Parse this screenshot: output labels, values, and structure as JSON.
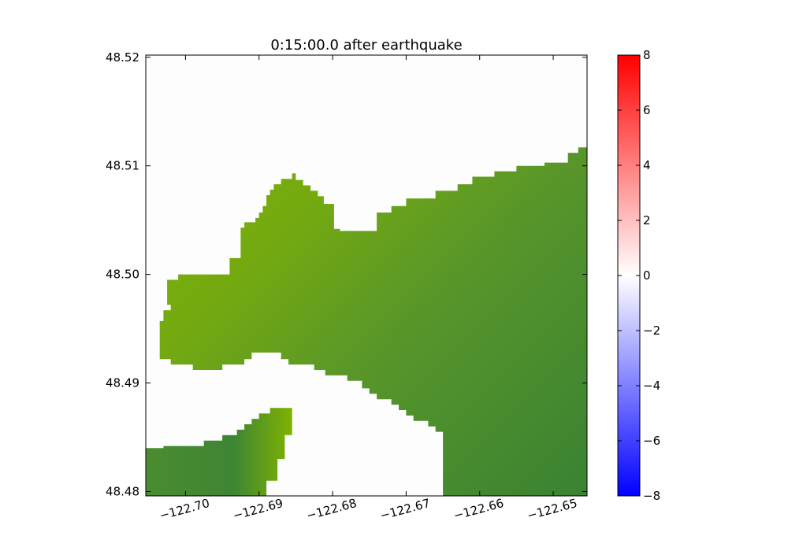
{
  "chart_data": {
    "type": "heatmap",
    "title": "0:15:00.0 after earthquake",
    "xlabel": "",
    "ylabel": "",
    "xlim": [
      -122.7054,
      -122.6454
    ],
    "ylim": [
      48.4796,
      48.5202
    ],
    "x_ticks": [
      {
        "value": -122.7,
        "label": "−122.70"
      },
      {
        "value": -122.69,
        "label": "−122.69"
      },
      {
        "value": -122.68,
        "label": "−122.68"
      },
      {
        "value": -122.67,
        "label": "−122.67"
      },
      {
        "value": -122.66,
        "label": "−122.66"
      },
      {
        "value": -122.65,
        "label": "−122.65"
      }
    ],
    "y_ticks": [
      {
        "value": 48.48,
        "label": "48.48"
      },
      {
        "value": 48.49,
        "label": "48.49"
      },
      {
        "value": 48.5,
        "label": "48.50"
      },
      {
        "value": 48.51,
        "label": "48.51"
      },
      {
        "value": 48.52,
        "label": "48.52"
      }
    ],
    "land_regions": [
      {
        "name": "main-land",
        "shade": "mix",
        "polygon": [
          [
            -122.7054,
            48.5202
          ],
          [
            -122.6454,
            48.5202
          ],
          [
            -122.6454,
            48.5117
          ],
          [
            -122.6466,
            48.5117
          ],
          [
            -122.6466,
            48.5112
          ],
          [
            -122.648,
            48.5112
          ],
          [
            -122.648,
            48.5103
          ],
          [
            -122.6512,
            48.5103
          ],
          [
            -122.6512,
            48.51
          ],
          [
            -122.655,
            48.51
          ],
          [
            -122.655,
            48.5095
          ],
          [
            -122.658,
            48.5095
          ],
          [
            -122.658,
            48.509
          ],
          [
            -122.661,
            48.509
          ],
          [
            -122.661,
            48.5083
          ],
          [
            -122.663,
            48.5083
          ],
          [
            -122.663,
            48.5077
          ],
          [
            -122.666,
            48.5077
          ],
          [
            -122.666,
            48.507
          ],
          [
            -122.67,
            48.507
          ],
          [
            -122.67,
            48.5063
          ],
          [
            -122.672,
            48.5063
          ],
          [
            -122.672,
            48.5057
          ],
          [
            -122.674,
            48.5057
          ],
          [
            -122.674,
            48.504
          ],
          [
            -122.679,
            48.504
          ],
          [
            -122.679,
            48.5042
          ],
          [
            -122.6798,
            48.5042
          ],
          [
            -122.6798,
            48.5065
          ],
          [
            -122.6812,
            48.5065
          ],
          [
            -122.6812,
            48.5072
          ],
          [
            -122.682,
            48.5072
          ],
          [
            -122.682,
            48.5077
          ],
          [
            -122.683,
            48.5077
          ],
          [
            -122.683,
            48.5082
          ],
          [
            -122.684,
            48.5082
          ],
          [
            -122.684,
            48.5087
          ],
          [
            -122.685,
            48.5087
          ],
          [
            -122.685,
            48.5093
          ],
          [
            -122.6855,
            48.5093
          ],
          [
            -122.6855,
            48.5088
          ],
          [
            -122.687,
            48.5088
          ],
          [
            -122.687,
            48.5083
          ],
          [
            -122.688,
            48.5083
          ],
          [
            -122.688,
            48.5078
          ],
          [
            -122.6885,
            48.5078
          ],
          [
            -122.6885,
            48.5073
          ],
          [
            -122.689,
            48.5073
          ],
          [
            -122.689,
            48.5063
          ],
          [
            -122.6895,
            48.5063
          ],
          [
            -122.6895,
            48.5057
          ],
          [
            -122.69,
            48.5057
          ],
          [
            -122.69,
            48.5052
          ],
          [
            -122.6905,
            48.5052
          ],
          [
            -122.6905,
            48.5048
          ],
          [
            -122.692,
            48.5048
          ],
          [
            -122.692,
            48.5043
          ],
          [
            -122.6925,
            48.5043
          ],
          [
            -122.6925,
            48.5015
          ],
          [
            -122.694,
            48.5015
          ],
          [
            -122.694,
            48.5
          ],
          [
            -122.701,
            48.5
          ],
          [
            -122.701,
            48.4995
          ],
          [
            -122.7025,
            48.4995
          ],
          [
            -122.7025,
            48.4972
          ],
          [
            -122.702,
            48.4972
          ],
          [
            -122.702,
            48.4967
          ],
          [
            -122.703,
            48.4967
          ],
          [
            -122.703,
            48.4957
          ],
          [
            -122.7035,
            48.4957
          ],
          [
            -122.7035,
            48.4937
          ],
          [
            -122.7035,
            48.4922
          ],
          [
            -122.702,
            48.4922
          ],
          [
            -122.702,
            48.4917
          ],
          [
            -122.699,
            48.4917
          ],
          [
            -122.699,
            48.4912
          ],
          [
            -122.695,
            48.4912
          ],
          [
            -122.695,
            48.4917
          ],
          [
            -122.692,
            48.4917
          ],
          [
            -122.692,
            48.4922
          ],
          [
            -122.691,
            48.4922
          ],
          [
            -122.691,
            48.4928
          ],
          [
            -122.687,
            48.4928
          ],
          [
            -122.687,
            48.4922
          ],
          [
            -122.686,
            48.4922
          ],
          [
            -122.686,
            48.4917
          ],
          [
            -122.6825,
            48.4917
          ],
          [
            -122.6825,
            48.4912
          ],
          [
            -122.681,
            48.4912
          ],
          [
            -122.681,
            48.4907
          ],
          [
            -122.678,
            48.4907
          ],
          [
            -122.678,
            48.4902
          ],
          [
            -122.676,
            48.4902
          ],
          [
            -122.676,
            48.4895
          ],
          [
            -122.675,
            48.4895
          ],
          [
            -122.675,
            48.489
          ],
          [
            -122.674,
            48.489
          ],
          [
            -122.674,
            48.4885
          ],
          [
            -122.672,
            48.4885
          ],
          [
            -122.672,
            48.488
          ],
          [
            -122.671,
            48.488
          ],
          [
            -122.671,
            48.4875
          ],
          [
            -122.67,
            48.4875
          ],
          [
            -122.67,
            48.487
          ],
          [
            -122.669,
            48.487
          ],
          [
            -122.669,
            48.4865
          ],
          [
            -122.667,
            48.4865
          ],
          [
            -122.667,
            48.486
          ],
          [
            -122.666,
            48.486
          ],
          [
            -122.666,
            48.4855
          ],
          [
            -122.665,
            48.4855
          ],
          [
            -122.665,
            48.4796
          ],
          [
            -122.6454,
            48.4796
          ],
          [
            -122.6454,
            48.5202
          ]
        ]
      },
      {
        "name": "southwest-land",
        "shade": "mix",
        "polygon": [
          [
            -122.7054,
            48.484
          ],
          [
            -122.7054,
            48.4796
          ],
          [
            -122.689,
            48.4796
          ],
          [
            -122.689,
            48.481
          ],
          [
            -122.6875,
            48.481
          ],
          [
            -122.6875,
            48.483
          ],
          [
            -122.6865,
            48.483
          ],
          [
            -122.6865,
            48.4852
          ],
          [
            -122.6855,
            48.4852
          ],
          [
            -122.6855,
            48.4877
          ],
          [
            -122.6885,
            48.4877
          ],
          [
            -122.6885,
            48.4872
          ],
          [
            -122.69,
            48.4872
          ],
          [
            -122.69,
            48.4867
          ],
          [
            -122.691,
            48.4867
          ],
          [
            -122.691,
            48.4862
          ],
          [
            -122.692,
            48.4862
          ],
          [
            -122.692,
            48.4857
          ],
          [
            -122.693,
            48.4857
          ],
          [
            -122.693,
            48.4852
          ],
          [
            -122.695,
            48.4852
          ],
          [
            -122.695,
            48.4847
          ],
          [
            -122.6975,
            48.4847
          ],
          [
            -122.6975,
            48.4842
          ],
          [
            -122.703,
            48.4842
          ],
          [
            -122.703,
            48.484
          ]
        ]
      }
    ],
    "colorbar": {
      "min": -8,
      "max": 8,
      "colors": [
        "#0000ff",
        "#ffffff",
        "#ff0000"
      ],
      "ticks": [
        {
          "value": 8,
          "label": "8"
        },
        {
          "value": 6,
          "label": "6"
        },
        {
          "value": 4,
          "label": "4"
        },
        {
          "value": 2,
          "label": "2"
        },
        {
          "value": 0,
          "label": "0"
        },
        {
          "value": -2,
          "label": "−2"
        },
        {
          "value": -4,
          "label": "−4"
        },
        {
          "value": -6,
          "label": "−6"
        },
        {
          "value": -8,
          "label": "−8"
        }
      ]
    },
    "colors": {
      "land_light": "#7fb300",
      "land_mid": "#58962a",
      "land_dark": "#3a8233",
      "water": "#fdfdfd"
    },
    "grid": false,
    "legend": "none"
  }
}
